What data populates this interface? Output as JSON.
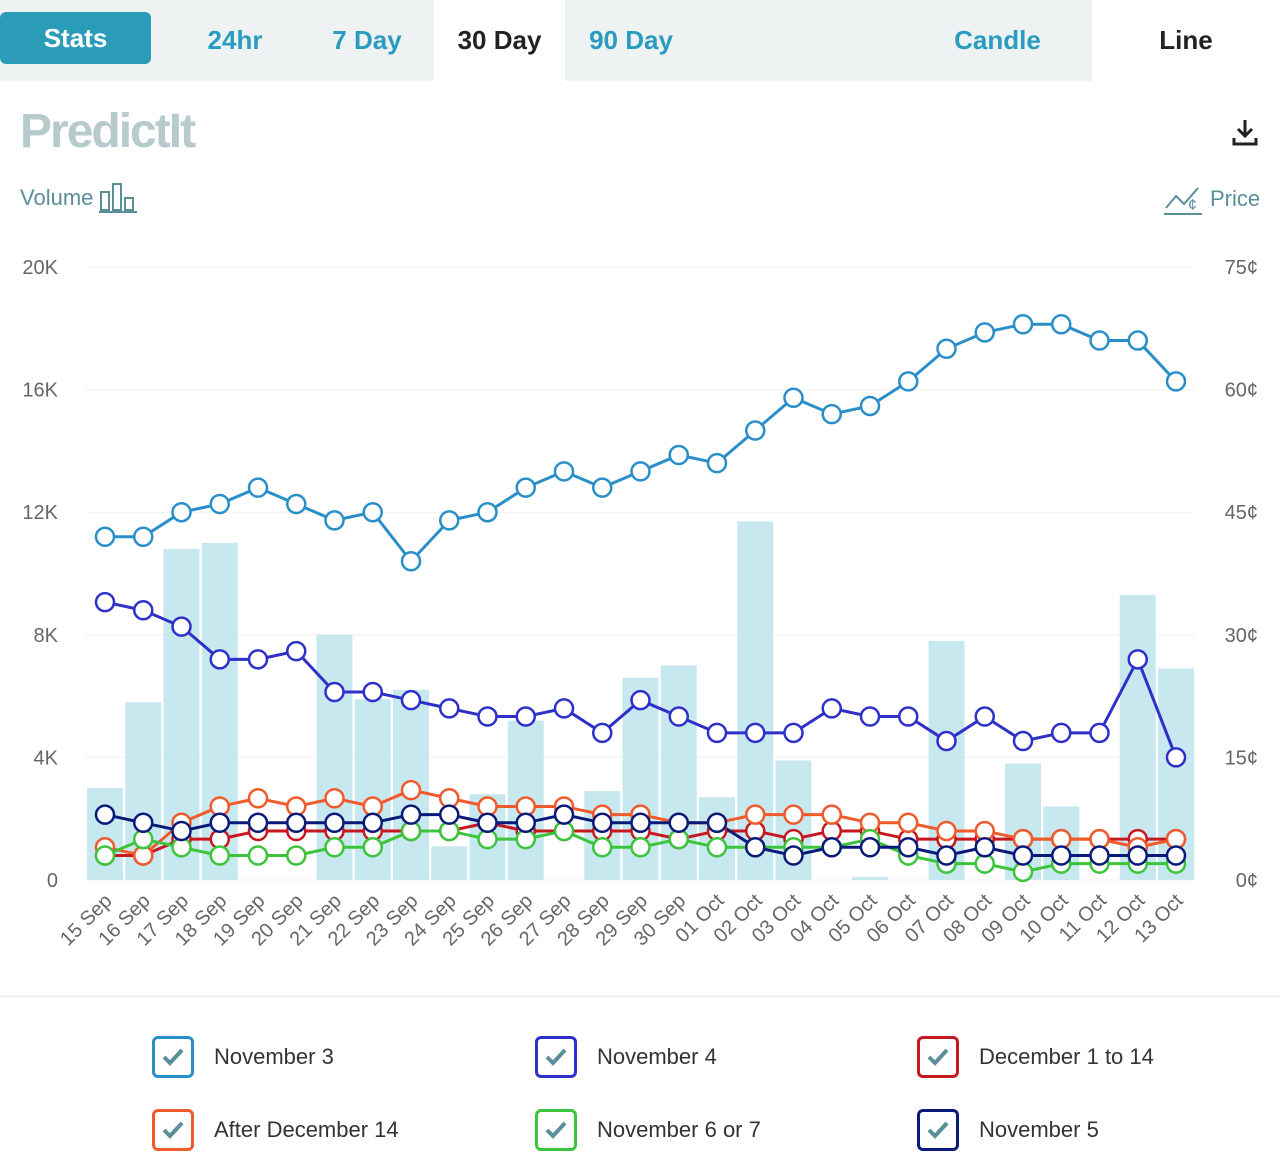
{
  "tabs": {
    "stats": "Stats",
    "h24": "24hr",
    "d7": "7 Day",
    "d30": "30 Day",
    "d90": "90 Day",
    "candle": "Candle",
    "line": "Line"
  },
  "logo": "PredictIt",
  "toggles": {
    "volume": "Volume",
    "price": "Price"
  },
  "colors": {
    "accent": "#2a9cb8",
    "volume_bar": "#c8e8ef",
    "grid": "#f0f0f0",
    "axis_text": "#666666"
  },
  "chart_data": {
    "type": "line",
    "left_axis": {
      "ticks": [
        "20K",
        "16K",
        "12K",
        "8K",
        "4K",
        "0"
      ],
      "range": [
        0,
        20000
      ]
    },
    "right_axis": {
      "ticks": [
        "75¢",
        "60¢",
        "45¢",
        "30¢",
        "15¢",
        "0¢"
      ],
      "range": [
        0,
        75
      ]
    },
    "categories": [
      "15 Sep",
      "16 Sep",
      "17 Sep",
      "18 Sep",
      "19 Sep",
      "20 Sep",
      "21 Sep",
      "22 Sep",
      "23 Sep",
      "24 Sep",
      "25 Sep",
      "26 Sep",
      "27 Sep",
      "28 Sep",
      "29 Sep",
      "30 Sep",
      "01 Oct",
      "02 Oct",
      "03 Oct",
      "04 Oct",
      "05 Oct",
      "06 Oct",
      "07 Oct",
      "08 Oct",
      "09 Oct",
      "10 Oct",
      "11 Oct",
      "12 Oct",
      "13 Oct"
    ],
    "volume": [
      3000,
      5800,
      10800,
      11000,
      0,
      0,
      8000,
      5900,
      6200,
      1100,
      2800,
      5200,
      0,
      2900,
      6600,
      7000,
      2700,
      11700,
      3900,
      0,
      100,
      0,
      7800,
      0,
      3800,
      2400,
      0,
      9300,
      6900
    ],
    "series": [
      {
        "name": "November 3",
        "color": "#2a8fc9",
        "values": [
          42,
          42,
          45,
          46,
          48,
          46,
          44,
          45,
          39,
          44,
          45,
          48,
          50,
          48,
          50,
          52,
          51,
          55,
          59,
          57,
          58,
          61,
          65,
          67,
          68,
          68,
          66,
          66,
          61
        ]
      },
      {
        "name": "November 4",
        "color": "#2f2fc9",
        "values": [
          34,
          33,
          31,
          27,
          27,
          28,
          23,
          23,
          22,
          21,
          20,
          20,
          21,
          18,
          22,
          20,
          18,
          18,
          18,
          21,
          20,
          20,
          17,
          20,
          17,
          18,
          18,
          27,
          15
        ]
      },
      {
        "name": "December 1 to 14",
        "color": "#c7171f",
        "values": [
          3,
          3,
          5,
          5,
          6,
          6,
          6,
          6,
          6,
          6,
          7,
          6,
          6,
          6,
          6,
          5,
          6,
          6,
          5,
          6,
          6,
          5,
          5,
          5,
          5,
          5,
          5,
          5,
          5
        ]
      },
      {
        "name": "After December 14",
        "color": "#f15a2b",
        "values": [
          4,
          3,
          7,
          9,
          10,
          9,
          10,
          9,
          11,
          10,
          9,
          9,
          9,
          8,
          8,
          7,
          7,
          8,
          8,
          8,
          7,
          7,
          6,
          6,
          5,
          5,
          5,
          4,
          5
        ]
      },
      {
        "name": "November 6 or 7",
        "color": "#3cc43c",
        "values": [
          3,
          5,
          4,
          3,
          3,
          3,
          4,
          4,
          6,
          6,
          5,
          5,
          6,
          4,
          4,
          5,
          4,
          4,
          4,
          4,
          5,
          3,
          2,
          2,
          1,
          2,
          2,
          2,
          2
        ]
      },
      {
        "name": "November 5",
        "color": "#0a1a7a",
        "values": [
          8,
          7,
          6,
          7,
          7,
          7,
          7,
          7,
          8,
          8,
          7,
          7,
          8,
          7,
          7,
          7,
          7,
          4,
          3,
          4,
          4,
          4,
          3,
          4,
          3,
          3,
          3,
          3,
          3
        ]
      }
    ]
  }
}
